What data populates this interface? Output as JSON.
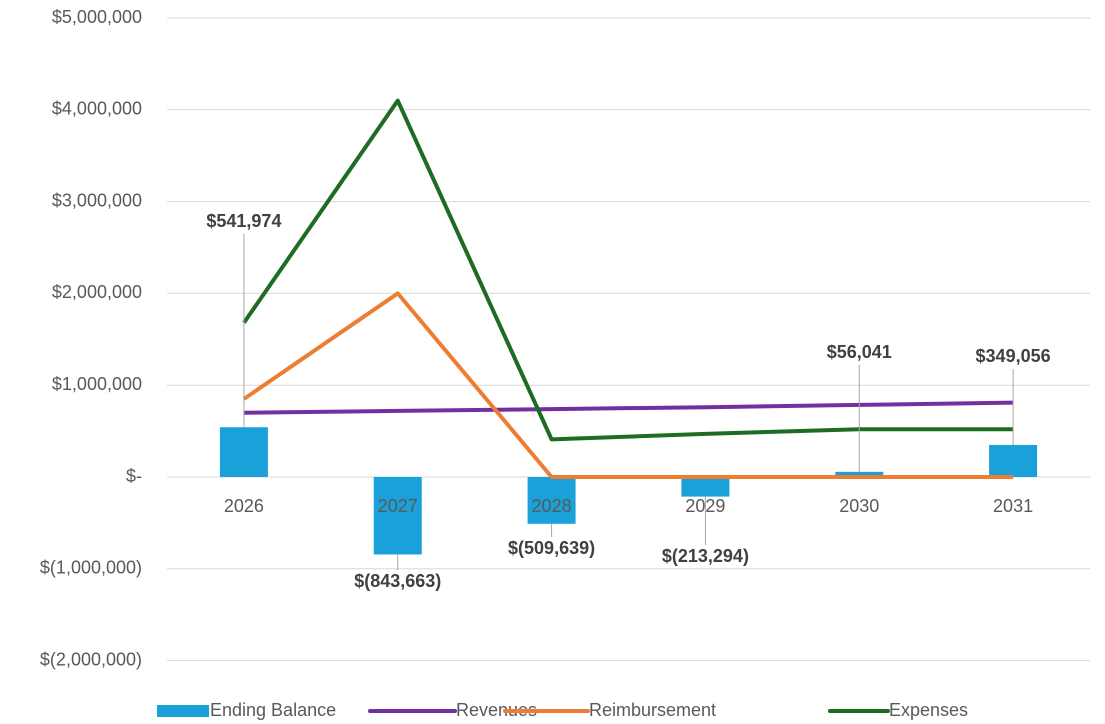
{
  "chart_data": {
    "type": "bar-line",
    "categories": [
      "2026",
      "2027",
      "2028",
      "2029",
      "2030",
      "2031"
    ],
    "series": [
      {
        "name": "Ending Balance",
        "type": "bar",
        "color": "#1aa1d9",
        "values": [
          541974,
          -843663,
          -509639,
          -213294,
          56041,
          349056
        ],
        "value_labels": [
          "$541,974",
          "$(843,663)",
          "$(509,639)",
          "$(213,294)",
          "$56,041",
          "$349,056"
        ]
      },
      {
        "name": "Revenues",
        "type": "line",
        "color": "#7030a0",
        "values": [
          700000,
          720000,
          740000,
          760000,
          785000,
          810000
        ]
      },
      {
        "name": "Reimbursement",
        "type": "line",
        "color": "#ed7d31",
        "values": [
          850000,
          2000000,
          0,
          0,
          0,
          0
        ]
      },
      {
        "name": "Expenses",
        "type": "line",
        "color": "#1e6b24",
        "values": [
          1680000,
          4100000,
          410000,
          470000,
          520000,
          520000
        ]
      }
    ],
    "ylim": [
      -2000000,
      5000000
    ],
    "yticks": [
      {
        "value": -2000000,
        "label": "$(2,000,000)"
      },
      {
        "value": -1000000,
        "label": "$(1,000,000)"
      },
      {
        "value": 0,
        "label": "$-"
      },
      {
        "value": 1000000,
        "label": "$1,000,000"
      },
      {
        "value": 2000000,
        "label": "$2,000,000"
      },
      {
        "value": 3000000,
        "label": "$3,000,000"
      },
      {
        "value": 4000000,
        "label": "$4,000,000"
      },
      {
        "value": 5000000,
        "label": "$5,000,000"
      }
    ],
    "grid": true,
    "legend": "bottom"
  }
}
